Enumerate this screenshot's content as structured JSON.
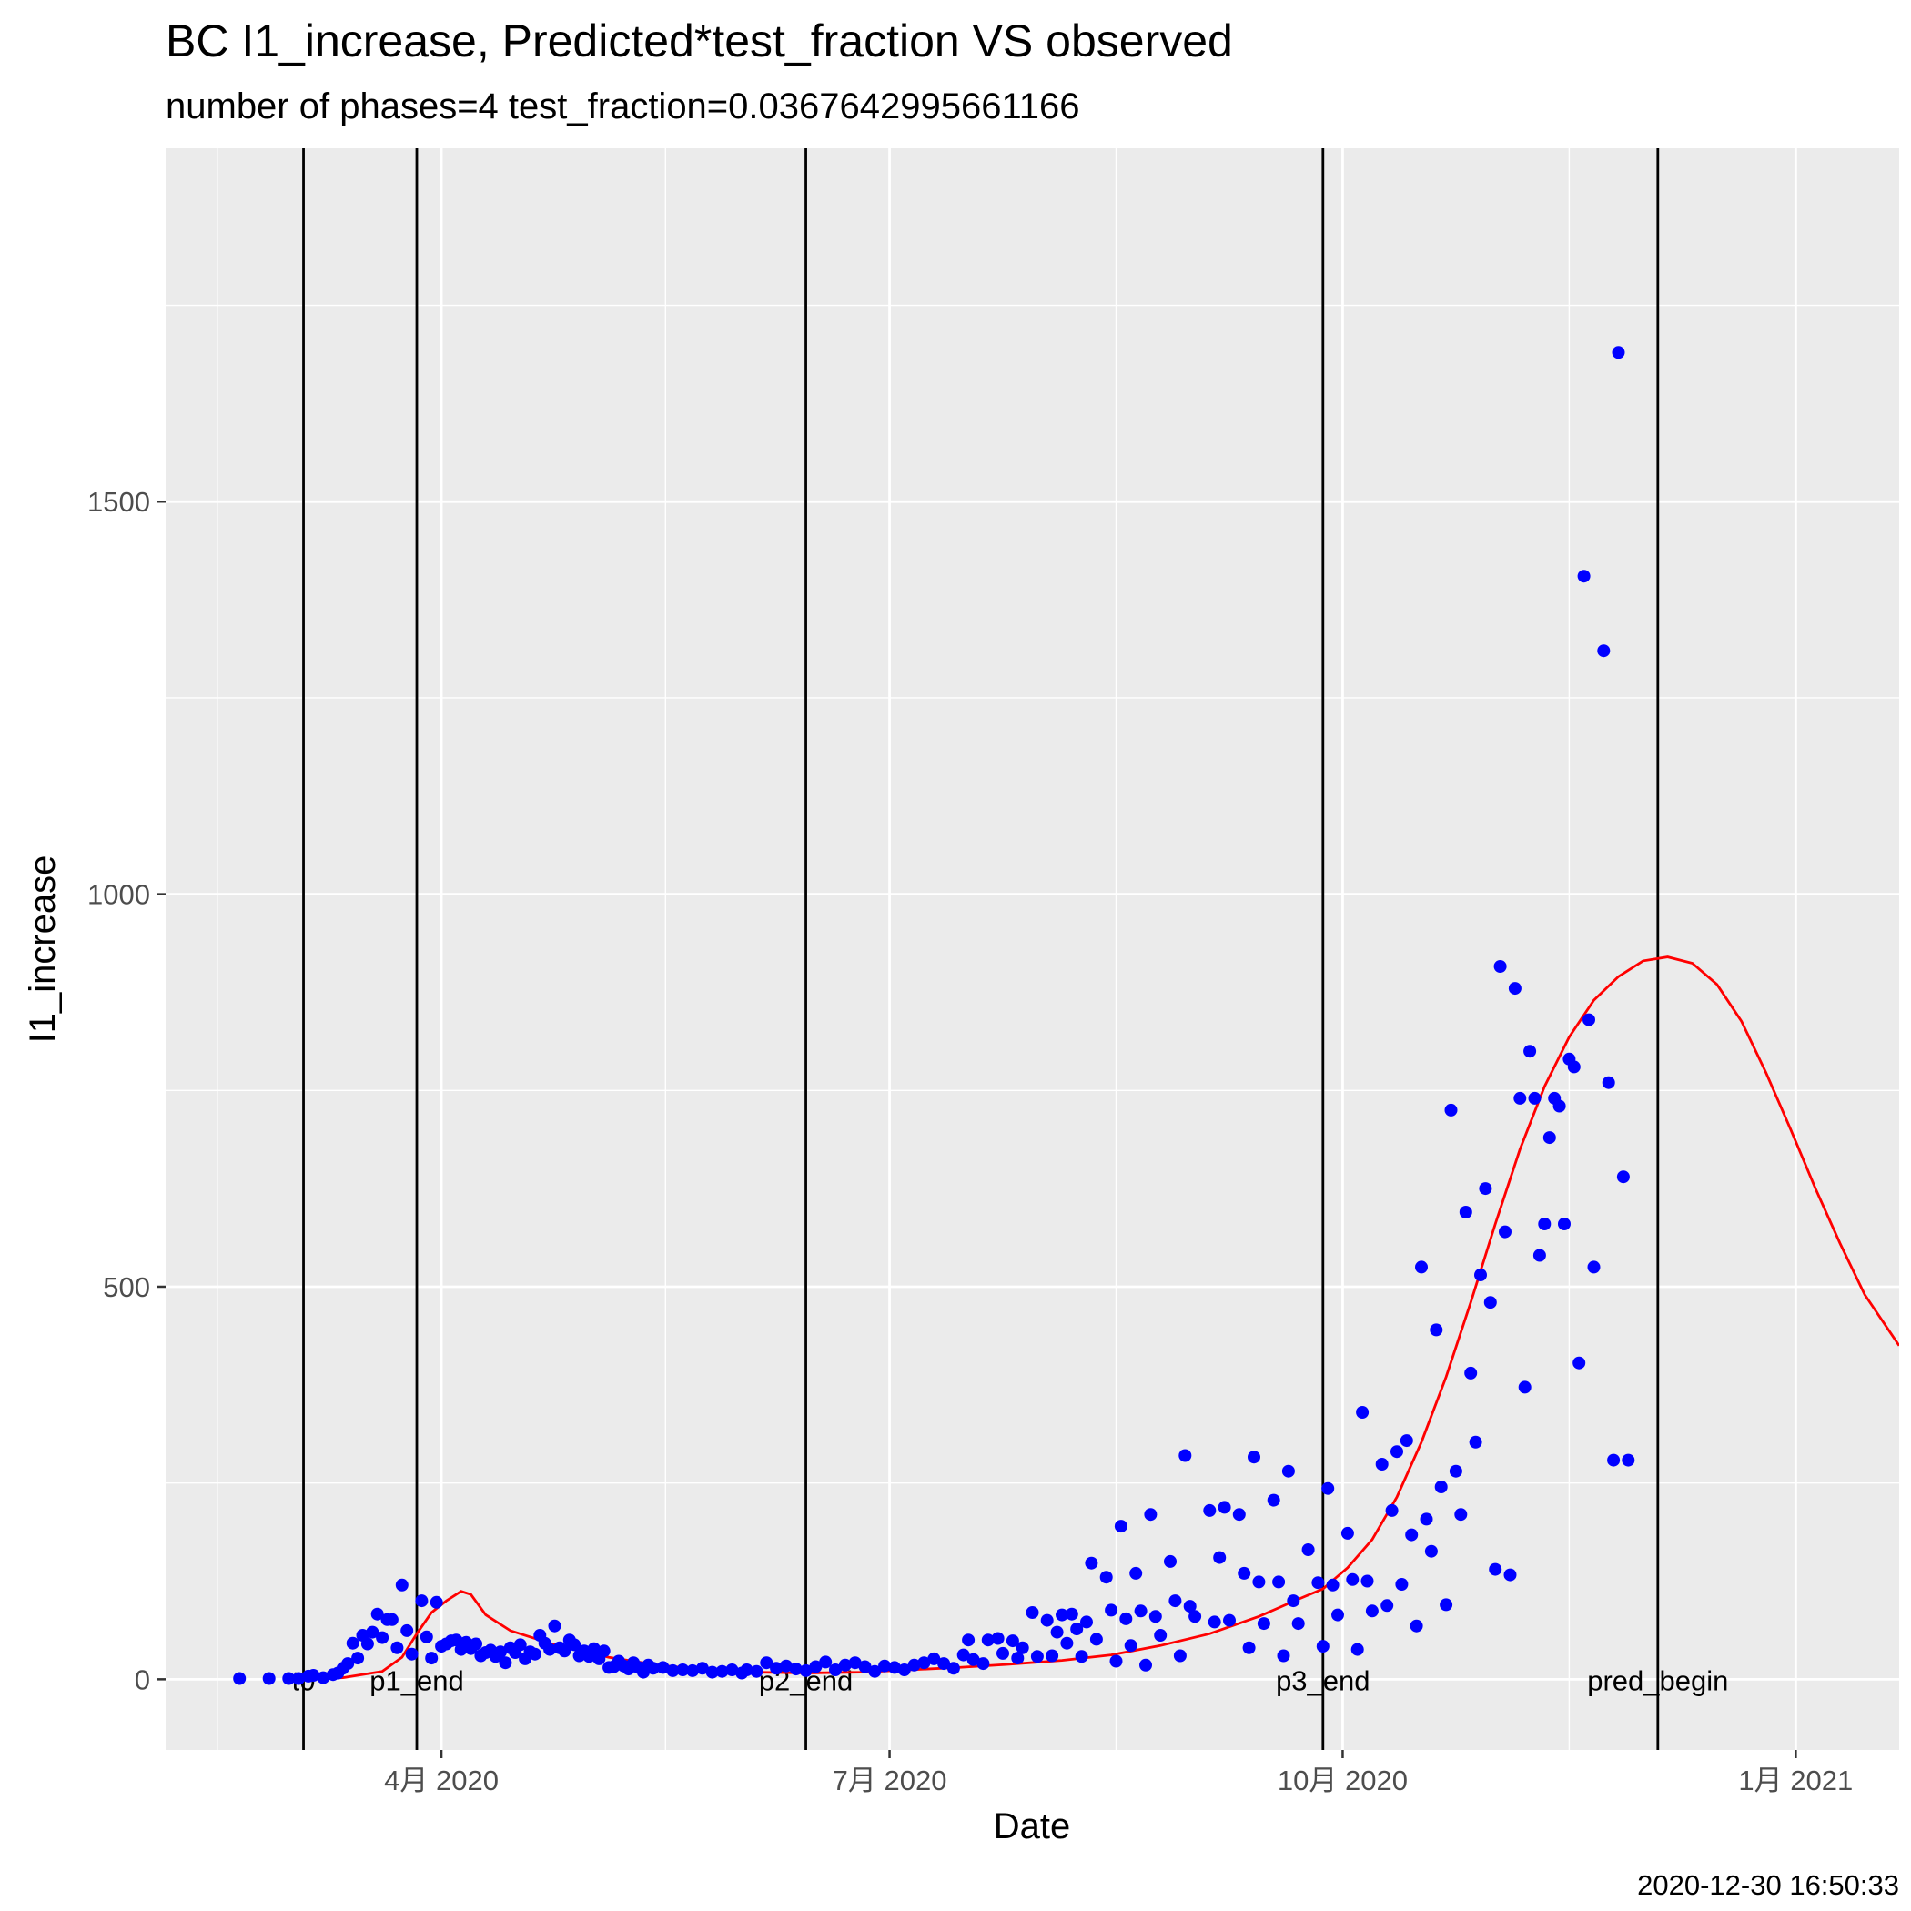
{
  "chart_data": {
    "type": "scatter",
    "title": "BC I1_increase, Predicted*test_fraction VS observed",
    "subtitle": "number of phases=4   test_fraction=0.0367642995661166",
    "xlabel": "Date",
    "ylabel": "I1_increase",
    "caption": "2020-12-30 16:50:33",
    "xlim": [
      "2020-02-05",
      "2021-01-22"
    ],
    "ylim": [
      -90,
      1950
    ],
    "grid": true,
    "legend": "none",
    "x_ticks": [
      {
        "date": "2020-04-01",
        "label": "4月 2020"
      },
      {
        "date": "2020-07-01",
        "label": "7月 2020"
      },
      {
        "date": "2020-10-01",
        "label": "10月 2020"
      },
      {
        "date": "2021-01-01",
        "label": "1月 2021"
      }
    ],
    "y_ticks": [
      0,
      500,
      1000,
      1500
    ],
    "colors": {
      "panel": "#ebebeb",
      "grid": "#ffffff",
      "observed": "#0000ff",
      "predicted": "#ff0000",
      "vline": "#000000"
    },
    "vlines": [
      {
        "date": "2020-03-04",
        "label": "t0"
      },
      {
        "date": "2020-03-27",
        "label": "p1_end"
      },
      {
        "date": "2020-06-14",
        "label": "p2_end"
      },
      {
        "date": "2020-09-27",
        "label": "p3_end"
      },
      {
        "date": "2020-12-04",
        "label": "pred_begin"
      }
    ],
    "series": [
      {
        "type": "scatter",
        "points": [
          [
            "2020-02-20",
            1
          ],
          [
            "2020-02-26",
            1
          ],
          [
            "2020-03-01",
            1
          ],
          [
            "2020-03-03",
            1
          ],
          [
            "2020-03-05",
            4
          ],
          [
            "2020-03-06",
            5
          ],
          [
            "2020-03-08",
            2
          ],
          [
            "2020-03-10",
            6
          ],
          [
            "2020-03-11",
            8
          ],
          [
            "2020-03-12",
            14
          ],
          [
            "2020-03-13",
            20
          ],
          [
            "2020-03-14",
            46
          ],
          [
            "2020-03-15",
            27
          ],
          [
            "2020-03-16",
            56
          ],
          [
            "2020-03-17",
            45
          ],
          [
            "2020-03-18",
            60
          ],
          [
            "2020-03-19",
            83
          ],
          [
            "2020-03-20",
            53
          ],
          [
            "2020-03-21",
            76
          ],
          [
            "2020-03-22",
            76
          ],
          [
            "2020-03-23",
            40
          ],
          [
            "2020-03-24",
            120
          ],
          [
            "2020-03-25",
            62
          ],
          [
            "2020-03-26",
            32
          ],
          [
            "2020-03-28",
            100
          ],
          [
            "2020-03-29",
            54
          ],
          [
            "2020-03-30",
            27
          ],
          [
            "2020-03-31",
            98
          ],
          [
            "2020-04-01",
            42
          ],
          [
            "2020-04-02",
            45
          ],
          [
            "2020-04-03",
            49
          ],
          [
            "2020-04-04",
            50
          ],
          [
            "2020-04-05",
            38
          ],
          [
            "2020-04-06",
            47
          ],
          [
            "2020-04-07",
            39
          ],
          [
            "2020-04-08",
            45
          ],
          [
            "2020-04-09",
            30
          ],
          [
            "2020-04-10",
            34
          ],
          [
            "2020-04-11",
            37
          ],
          [
            "2020-04-12",
            29
          ],
          [
            "2020-04-13",
            35
          ],
          [
            "2020-04-14",
            21
          ],
          [
            "2020-04-15",
            40
          ],
          [
            "2020-04-16",
            34
          ],
          [
            "2020-04-17",
            44
          ],
          [
            "2020-04-18",
            26
          ],
          [
            "2020-04-19",
            35
          ],
          [
            "2020-04-20",
            32
          ],
          [
            "2020-04-21",
            56
          ],
          [
            "2020-04-22",
            46
          ],
          [
            "2020-04-23",
            38
          ],
          [
            "2020-04-24",
            68
          ],
          [
            "2020-04-25",
            40
          ],
          [
            "2020-04-26",
            36
          ],
          [
            "2020-04-27",
            50
          ],
          [
            "2020-04-28",
            44
          ],
          [
            "2020-04-29",
            30
          ],
          [
            "2020-04-30",
            36
          ],
          [
            "2020-05-01",
            29
          ],
          [
            "2020-05-02",
            39
          ],
          [
            "2020-05-03",
            26
          ],
          [
            "2020-05-04",
            36
          ],
          [
            "2020-05-05",
            15
          ],
          [
            "2020-05-06",
            16
          ],
          [
            "2020-05-07",
            23
          ],
          [
            "2020-05-08",
            17
          ],
          [
            "2020-05-09",
            13
          ],
          [
            "2020-05-10",
            21
          ],
          [
            "2020-05-11",
            15
          ],
          [
            "2020-05-12",
            9
          ],
          [
            "2020-05-13",
            18
          ],
          [
            "2020-05-14",
            14
          ],
          [
            "2020-05-16",
            15
          ],
          [
            "2020-05-18",
            11
          ],
          [
            "2020-05-20",
            12
          ],
          [
            "2020-05-22",
            11
          ],
          [
            "2020-05-24",
            14
          ],
          [
            "2020-05-26",
            9
          ],
          [
            "2020-05-28",
            10
          ],
          [
            "2020-05-30",
            12
          ],
          [
            "2020-06-01",
            8
          ],
          [
            "2020-06-02",
            12
          ],
          [
            "2020-06-04",
            10
          ],
          [
            "2020-06-06",
            21
          ],
          [
            "2020-06-08",
            14
          ],
          [
            "2020-06-10",
            17
          ],
          [
            "2020-06-12",
            13
          ],
          [
            "2020-06-14",
            11
          ],
          [
            "2020-06-16",
            16
          ],
          [
            "2020-06-18",
            22
          ],
          [
            "2020-06-20",
            12
          ],
          [
            "2020-06-22",
            18
          ],
          [
            "2020-06-24",
            21
          ],
          [
            "2020-06-26",
            16
          ],
          [
            "2020-06-28",
            10
          ],
          [
            "2020-06-30",
            17
          ],
          [
            "2020-07-02",
            15
          ],
          [
            "2020-07-04",
            12
          ],
          [
            "2020-07-06",
            18
          ],
          [
            "2020-07-08",
            21
          ],
          [
            "2020-07-10",
            26
          ],
          [
            "2020-07-12",
            20
          ],
          [
            "2020-07-14",
            14
          ],
          [
            "2020-07-16",
            31
          ],
          [
            "2020-07-17",
            50
          ],
          [
            "2020-07-18",
            25
          ],
          [
            "2020-07-20",
            20
          ],
          [
            "2020-07-21",
            50
          ],
          [
            "2020-07-23",
            52
          ],
          [
            "2020-07-24",
            33
          ],
          [
            "2020-07-26",
            49
          ],
          [
            "2020-07-27",
            27
          ],
          [
            "2020-07-28",
            40
          ],
          [
            "2020-07-30",
            85
          ],
          [
            "2020-07-31",
            29
          ],
          [
            "2020-08-02",
            75
          ],
          [
            "2020-08-03",
            30
          ],
          [
            "2020-08-04",
            60
          ],
          [
            "2020-08-05",
            82
          ],
          [
            "2020-08-06",
            46
          ],
          [
            "2020-08-07",
            83
          ],
          [
            "2020-08-08",
            64
          ],
          [
            "2020-08-09",
            29
          ],
          [
            "2020-08-10",
            73
          ],
          [
            "2020-08-11",
            148
          ],
          [
            "2020-08-12",
            51
          ],
          [
            "2020-08-14",
            130
          ],
          [
            "2020-08-15",
            88
          ],
          [
            "2020-08-16",
            23
          ],
          [
            "2020-08-17",
            195
          ],
          [
            "2020-08-18",
            77
          ],
          [
            "2020-08-19",
            43
          ],
          [
            "2020-08-20",
            135
          ],
          [
            "2020-08-21",
            87
          ],
          [
            "2020-08-22",
            18
          ],
          [
            "2020-08-23",
            210
          ],
          [
            "2020-08-24",
            80
          ],
          [
            "2020-08-25",
            56
          ],
          [
            "2020-08-27",
            150
          ],
          [
            "2020-08-28",
            100
          ],
          [
            "2020-08-29",
            30
          ],
          [
            "2020-08-30",
            285
          ],
          [
            "2020-08-31",
            93
          ],
          [
            "2020-09-01",
            80
          ],
          [
            "2020-09-04",
            215
          ],
          [
            "2020-09-05",
            73
          ],
          [
            "2020-09-06",
            155
          ],
          [
            "2020-09-07",
            219
          ],
          [
            "2020-09-08",
            75
          ],
          [
            "2020-09-10",
            210
          ],
          [
            "2020-09-11",
            135
          ],
          [
            "2020-09-12",
            40
          ],
          [
            "2020-09-13",
            283
          ],
          [
            "2020-09-14",
            124
          ],
          [
            "2020-09-15",
            71
          ],
          [
            "2020-09-17",
            228
          ],
          [
            "2020-09-18",
            124
          ],
          [
            "2020-09-19",
            30
          ],
          [
            "2020-09-20",
            265
          ],
          [
            "2020-09-21",
            100
          ],
          [
            "2020-09-22",
            71
          ],
          [
            "2020-09-24",
            165
          ],
          [
            "2020-09-26",
            123
          ],
          [
            "2020-09-27",
            42
          ],
          [
            "2020-09-28",
            243
          ],
          [
            "2020-09-29",
            120
          ],
          [
            "2020-09-30",
            82
          ],
          [
            "2020-10-02",
            186
          ],
          [
            "2020-10-03",
            127
          ],
          [
            "2020-10-04",
            38
          ],
          [
            "2020-10-05",
            340
          ],
          [
            "2020-10-06",
            125
          ],
          [
            "2020-10-07",
            87
          ],
          [
            "2020-10-09",
            274
          ],
          [
            "2020-10-10",
            94
          ],
          [
            "2020-10-11",
            215
          ],
          [
            "2020-10-12",
            290
          ],
          [
            "2020-10-13",
            121
          ],
          [
            "2020-10-14",
            304
          ],
          [
            "2020-10-15",
            184
          ],
          [
            "2020-10-16",
            68
          ],
          [
            "2020-10-17",
            525
          ],
          [
            "2020-10-18",
            204
          ],
          [
            "2020-10-19",
            163
          ],
          [
            "2020-10-20",
            445
          ],
          [
            "2020-10-21",
            245
          ],
          [
            "2020-10-22",
            95
          ],
          [
            "2020-10-23",
            725
          ],
          [
            "2020-10-24",
            265
          ],
          [
            "2020-10-25",
            210
          ],
          [
            "2020-10-26",
            595
          ],
          [
            "2020-10-27",
            390
          ],
          [
            "2020-10-28",
            302
          ],
          [
            "2020-10-29",
            515
          ],
          [
            "2020-10-30",
            625
          ],
          [
            "2020-10-31",
            480
          ],
          [
            "2020-11-01",
            140
          ],
          [
            "2020-11-02",
            908
          ],
          [
            "2020-11-03",
            570
          ],
          [
            "2020-11-04",
            133
          ],
          [
            "2020-11-05",
            880
          ],
          [
            "2020-11-06",
            740
          ],
          [
            "2020-11-07",
            372
          ],
          [
            "2020-11-08",
            800
          ],
          [
            "2020-11-09",
            740
          ],
          [
            "2020-11-10",
            540
          ],
          [
            "2020-11-11",
            580
          ],
          [
            "2020-11-12",
            690
          ],
          [
            "2020-11-13",
            740
          ],
          [
            "2020-11-14",
            730
          ],
          [
            "2020-11-15",
            580
          ],
          [
            "2020-11-16",
            790
          ],
          [
            "2020-11-17",
            780
          ],
          [
            "2020-11-18",
            403
          ],
          [
            "2020-11-19",
            1405
          ],
          [
            "2020-11-20",
            840
          ],
          [
            "2020-11-21",
            525
          ],
          [
            "2020-11-23",
            1310
          ],
          [
            "2020-11-24",
            760
          ],
          [
            "2020-11-25",
            279
          ],
          [
            "2020-11-26",
            1690
          ],
          [
            "2020-11-27",
            640
          ],
          [
            "2020-11-28",
            279
          ]
        ]
      },
      {
        "type": "line",
        "points": [
          [
            "2020-03-04",
            0
          ],
          [
            "2020-03-12",
            2
          ],
          [
            "2020-03-20",
            10
          ],
          [
            "2020-03-24",
            28
          ],
          [
            "2020-03-27",
            58
          ],
          [
            "2020-03-30",
            85
          ],
          [
            "2020-04-02",
            100
          ],
          [
            "2020-04-05",
            112
          ],
          [
            "2020-04-07",
            108
          ],
          [
            "2020-04-10",
            82
          ],
          [
            "2020-04-15",
            62
          ],
          [
            "2020-04-25",
            42
          ],
          [
            "2020-05-05",
            28
          ],
          [
            "2020-05-15",
            18
          ],
          [
            "2020-05-25",
            12
          ],
          [
            "2020-06-04",
            9
          ],
          [
            "2020-06-14",
            8
          ],
          [
            "2020-06-25",
            9
          ],
          [
            "2020-07-05",
            12
          ],
          [
            "2020-07-15",
            15
          ],
          [
            "2020-07-25",
            19
          ],
          [
            "2020-08-05",
            24
          ],
          [
            "2020-08-15",
            31
          ],
          [
            "2020-08-25",
            43
          ],
          [
            "2020-09-04",
            58
          ],
          [
            "2020-09-14",
            80
          ],
          [
            "2020-09-22",
            102
          ],
          [
            "2020-09-27",
            115
          ],
          [
            "2020-10-02",
            142
          ],
          [
            "2020-10-07",
            178
          ],
          [
            "2020-10-12",
            232
          ],
          [
            "2020-10-17",
            302
          ],
          [
            "2020-10-22",
            385
          ],
          [
            "2020-10-27",
            480
          ],
          [
            "2020-11-01",
            580
          ],
          [
            "2020-11-06",
            675
          ],
          [
            "2020-11-11",
            755
          ],
          [
            "2020-11-16",
            818
          ],
          [
            "2020-11-21",
            865
          ],
          [
            "2020-11-26",
            895
          ],
          [
            "2020-12-01",
            915
          ],
          [
            "2020-12-06",
            920
          ],
          [
            "2020-12-11",
            912
          ],
          [
            "2020-12-16",
            885
          ],
          [
            "2020-12-21",
            838
          ],
          [
            "2020-12-26",
            772
          ],
          [
            "2020-12-31",
            700
          ],
          [
            "2021-01-05",
            625
          ],
          [
            "2021-01-10",
            555
          ],
          [
            "2021-01-15",
            490
          ],
          [
            "2021-01-22",
            425
          ]
        ]
      }
    ]
  }
}
